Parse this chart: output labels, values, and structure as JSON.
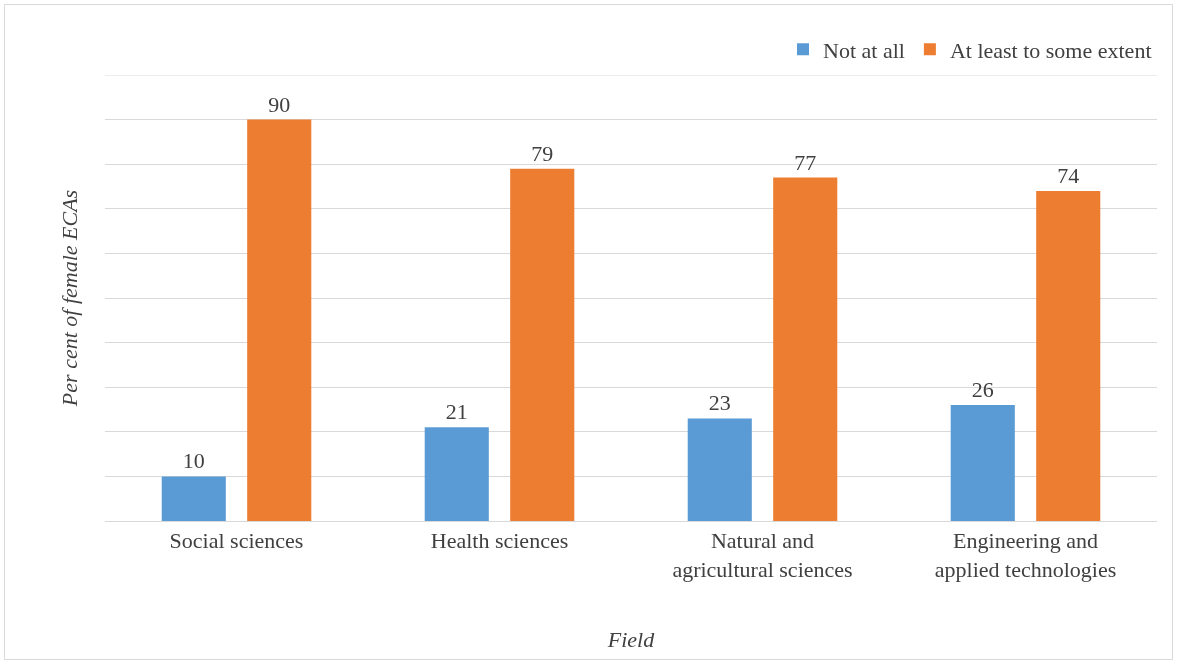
{
  "chart_data": {
    "type": "bar",
    "xlabel": "Field",
    "ylabel": "Per cent of female ECAs",
    "categories": [
      "Social sciences",
      "Health sciences",
      "Natural and agricultural sciences",
      "Engineering and applied technologies"
    ],
    "series": [
      {
        "name": "Not at all",
        "color": "#5b9bd5",
        "values": [
          10,
          21,
          23,
          26
        ]
      },
      {
        "name": "At least to some extent",
        "color": "#ed7d31",
        "values": [
          90,
          79,
          77,
          74
        ]
      }
    ],
    "ylim": [
      0,
      100
    ],
    "yticks": [
      {
        "value": 0,
        "label": null
      },
      {
        "value": 10,
        "label": null
      },
      {
        "value": 20,
        "label": null
      },
      {
        "value": 30,
        "label": null
      },
      {
        "value": 40,
        "label": null
      },
      {
        "value": 50,
        "label": null
      },
      {
        "value": 60,
        "label": null
      },
      {
        "value": 70,
        "label": null
      },
      {
        "value": 80,
        "label": null
      },
      {
        "value": 90,
        "label": null
      },
      {
        "value": 100,
        "label": null
      }
    ],
    "tick_labels": "x",
    "grid": "y",
    "legend": "top right",
    "data_labels": true
  }
}
